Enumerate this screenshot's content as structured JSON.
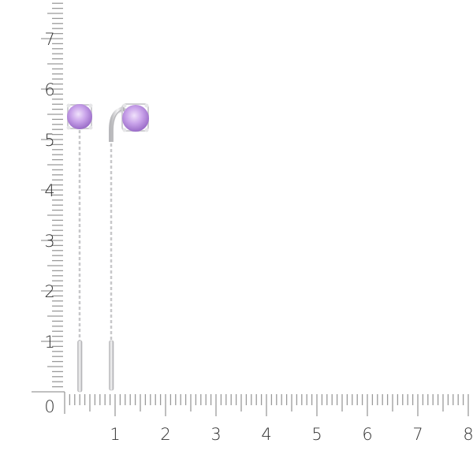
{
  "ruler": {
    "x_labels": [
      "1",
      "2",
      "3",
      "4",
      "5",
      "6",
      "7",
      "8"
    ],
    "y_labels": [
      "1",
      "2",
      "3",
      "4",
      "5",
      "6",
      "7"
    ],
    "origin_label": "0",
    "minor_per_unit": 10,
    "tick_color": "#9a9a9a",
    "label_color": "#333333"
  },
  "product": {
    "stone_color": "#c9a3ea",
    "metal_color": "#d4d4d6"
  }
}
